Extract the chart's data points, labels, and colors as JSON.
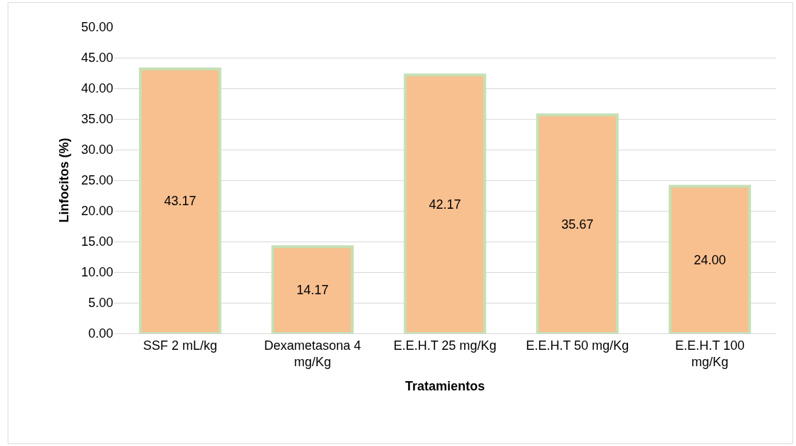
{
  "chart_data": {
    "type": "bar",
    "xlabel": "Tratamientos",
    "ylabel": "Linfocitos (%)",
    "categories": [
      "SSF 2 mL/kg",
      "Dexametasona 4 mg/Kg",
      "E.E.H.T 25 mg/Kg",
      "E.E.H.T 50 mg/Kg",
      "E.E.H.T 100 mg/Kg"
    ],
    "values": [
      43.17,
      14.17,
      42.17,
      35.67,
      24.0
    ],
    "value_labels": [
      "43.17",
      "14.17",
      "42.17",
      "35.67",
      "24.00"
    ],
    "color": "#f8bf8f",
    "ylim": [
      0,
      50
    ],
    "yticks": [
      {
        "value": 0,
        "label": "0.00"
      },
      {
        "value": 5,
        "label": "5.00"
      },
      {
        "value": 10,
        "label": "10.00"
      },
      {
        "value": 15,
        "label": "15.00"
      },
      {
        "value": 20,
        "label": "20.00"
      },
      {
        "value": 25,
        "label": "25.00"
      },
      {
        "value": 30,
        "label": "30.00"
      },
      {
        "value": 35,
        "label": "35.00"
      },
      {
        "value": 40,
        "label": "40.00"
      },
      {
        "value": 45,
        "label": "45.00"
      },
      {
        "value": 50,
        "label": "50.00"
      }
    ],
    "grid": "y"
  }
}
